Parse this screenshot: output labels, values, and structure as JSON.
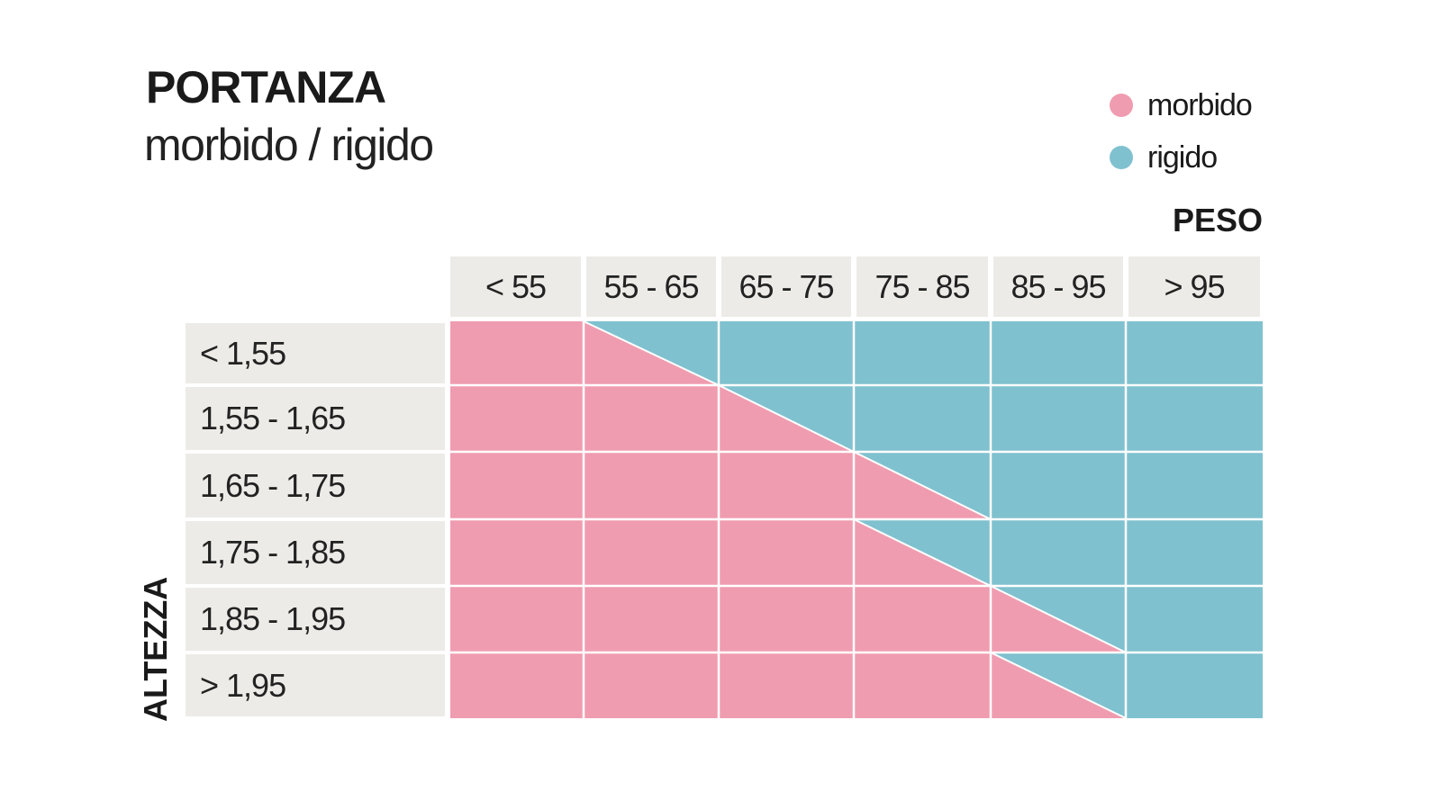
{
  "chart_data": {
    "type": "heatmap",
    "title": "PORTANZA",
    "subtitle": "morbido / rigido",
    "xlabel": "PESO",
    "ylabel": "ALTEZZA",
    "columns": [
      "< 55",
      "55 - 65",
      "65 - 75",
      "75 - 85",
      "85 - 95",
      "> 95"
    ],
    "rows": [
      "< 1,55",
      "1,55 - 1,65",
      "1,65 - 1,75",
      "1,75 - 1,85",
      "1,85 - 1,95",
      "> 1,95"
    ],
    "legend": [
      {
        "label": "morbido",
        "key": "M",
        "color": "#f09cb0"
      },
      {
        "label": "rigido",
        "key": "R",
        "color": "#7fc1cf"
      }
    ],
    "legend_placement": "top-right",
    "cell_encoding": "M = morbido, R = rigido, MR = split diagonally (morbido lower-left, rigido upper-right)",
    "cells": [
      [
        "M",
        "MR",
        "R",
        "R",
        "R",
        "R"
      ],
      [
        "M",
        "M",
        "MR",
        "R",
        "R",
        "R"
      ],
      [
        "M",
        "M",
        "M",
        "MR",
        "R",
        "R"
      ],
      [
        "M",
        "M",
        "M",
        "MR",
        "R",
        "R"
      ],
      [
        "M",
        "M",
        "M",
        "M",
        "MR",
        "R"
      ],
      [
        "M",
        "M",
        "M",
        "M",
        "MR",
        "R"
      ]
    ]
  }
}
